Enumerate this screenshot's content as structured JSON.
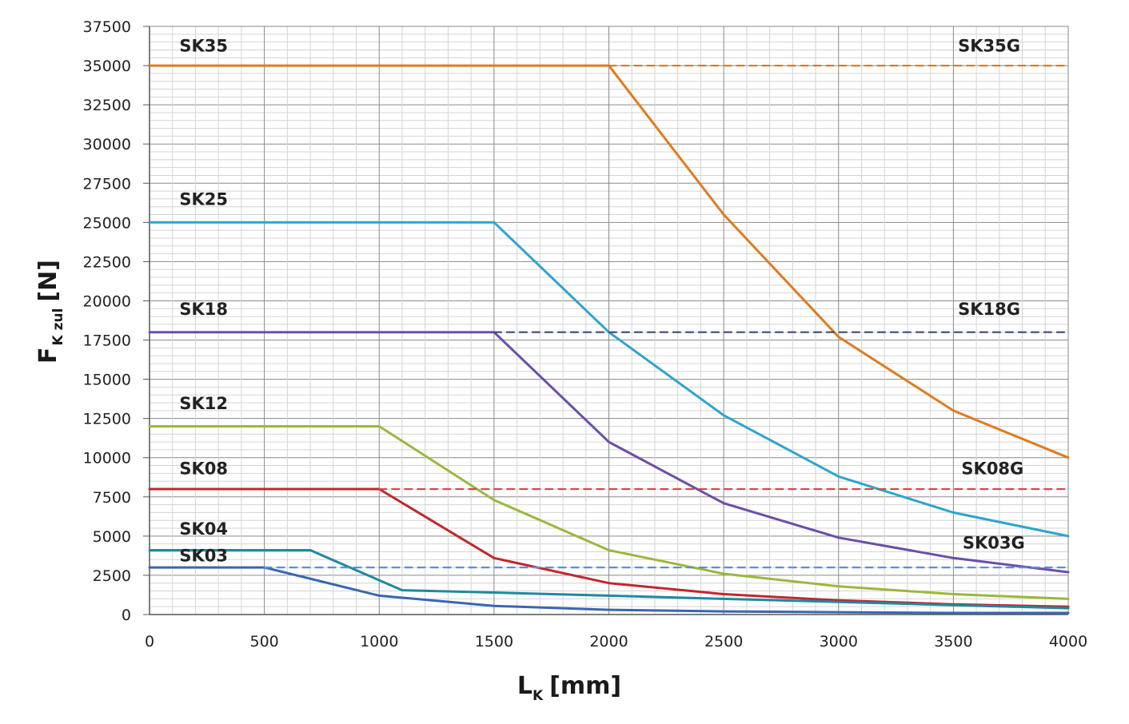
{
  "chart_data": {
    "type": "line",
    "title": "",
    "xlabel_main": "L",
    "xlabel_sub": "K",
    "xlabel_unit": "[mm]",
    "ylabel_main": "F",
    "ylabel_sub": "K zul",
    "ylabel_unit": "[N]",
    "xlim": [
      0,
      4000
    ],
    "ylim": [
      0,
      37500
    ],
    "x_ticks": [
      0,
      500,
      1000,
      1500,
      2000,
      2500,
      3000,
      3500,
      4000
    ],
    "y_ticks": [
      0,
      2500,
      5000,
      7500,
      10000,
      12500,
      15000,
      17500,
      20000,
      22500,
      25000,
      27500,
      30000,
      32500,
      35000,
      37500
    ],
    "grid": true,
    "series": [
      {
        "name": "SK35",
        "color": "#e07b1f",
        "dashed": false,
        "x": [
          0,
          2000,
          2500,
          3000,
          3500,
          4000
        ],
        "y": [
          35000,
          35000,
          25500,
          17700,
          13000,
          10000
        ]
      },
      {
        "name": "SK35G",
        "color": "#e07b1f",
        "dashed": true,
        "x": [
          2000,
          4000
        ],
        "y": [
          35000,
          35000
        ]
      },
      {
        "name": "SK25",
        "color": "#2ea4cf",
        "dashed": false,
        "x": [
          0,
          1500,
          2000,
          2500,
          3000,
          3500,
          4000
        ],
        "y": [
          25000,
          25000,
          18000,
          12700,
          8800,
          6500,
          5000
        ]
      },
      {
        "name": "SK18",
        "color": "#6a4fa8",
        "dashed": false,
        "x": [
          0,
          1500,
          2000,
          2500,
          3000,
          3500,
          4000
        ],
        "y": [
          18000,
          18000,
          11000,
          7100,
          4900,
          3600,
          2700
        ]
      },
      {
        "name": "SK18G",
        "color": "#3a4a7a",
        "dashed": true,
        "x": [
          1500,
          4000
        ],
        "y": [
          18000,
          18000
        ]
      },
      {
        "name": "SK12",
        "color": "#9ab83c",
        "dashed": false,
        "x": [
          0,
          1000,
          1500,
          2000,
          2500,
          3000,
          3500,
          4000
        ],
        "y": [
          12000,
          12000,
          7300,
          4100,
          2600,
          1800,
          1300,
          1000
        ]
      },
      {
        "name": "SK08",
        "color": "#c1272d",
        "dashed": false,
        "x": [
          0,
          1000,
          1500,
          2000,
          2500,
          3000,
          3500,
          4000
        ],
        "y": [
          8000,
          8000,
          3600,
          2000,
          1300,
          900,
          650,
          500
        ]
      },
      {
        "name": "SK08G",
        "color": "#d9444a",
        "dashed": true,
        "x": [
          1000,
          4000
        ],
        "y": [
          8000,
          8000
        ]
      },
      {
        "name": "SK04",
        "color": "#1d8a9e",
        "dashed": false,
        "x": [
          0,
          700,
          1100,
          1500,
          2000,
          2500,
          3000,
          3500,
          4000
        ],
        "y": [
          4100,
          4100,
          1550,
          1400,
          1200,
          1000,
          800,
          600,
          400
        ]
      },
      {
        "name": "SK03",
        "color": "#3a66b0",
        "dashed": false,
        "x": [
          0,
          500,
          1000,
          1500,
          2000,
          2500,
          3000,
          3500,
          4000
        ],
        "y": [
          3000,
          3000,
          1200,
          550,
          300,
          200,
          150,
          100,
          100
        ]
      },
      {
        "name": "SK03G",
        "color": "#5b8fd9",
        "dashed": true,
        "x": [
          500,
          4000
        ],
        "y": [
          3000,
          3000
        ]
      }
    ],
    "labels": [
      {
        "text": "SK35",
        "x": 130,
        "y": 35900,
        "anchor": "start"
      },
      {
        "text": "SK35G",
        "x": 3520,
        "y": 35900,
        "anchor": "start"
      },
      {
        "text": "SK25",
        "x": 130,
        "y": 26100,
        "anchor": "start"
      },
      {
        "text": "SK18",
        "x": 130,
        "y": 19100,
        "anchor": "start"
      },
      {
        "text": "SK18G",
        "x": 3520,
        "y": 19100,
        "anchor": "start"
      },
      {
        "text": "SK12",
        "x": 130,
        "y": 13100,
        "anchor": "start"
      },
      {
        "text": "SK08",
        "x": 130,
        "y": 8950,
        "anchor": "start"
      },
      {
        "text": "SK08G",
        "x": 3535,
        "y": 8950,
        "anchor": "start"
      },
      {
        "text": "SK04",
        "x": 130,
        "y": 5100,
        "anchor": "start"
      },
      {
        "text": "SK03",
        "x": 130,
        "y": 3400,
        "anchor": "start"
      },
      {
        "text": "SK03G",
        "x": 3540,
        "y": 4200,
        "anchor": "start"
      }
    ]
  }
}
